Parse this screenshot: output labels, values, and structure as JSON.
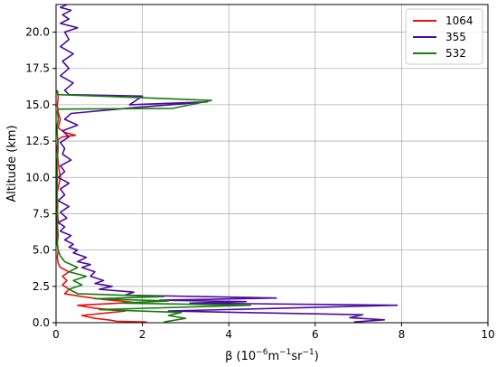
{
  "chart_data": {
    "type": "line",
    "orientation": "vertical-profile",
    "xlabel_parts": {
      "base": "β (10",
      "exp1": "−6",
      "mid": "m",
      "exp2": "−1",
      "mid2": "sr",
      "exp3": "−1",
      "end": ")"
    },
    "ylabel": "Altitude (km)",
    "xlim": [
      0,
      10
    ],
    "ylim": [
      0,
      21.9
    ],
    "x_ticks": [
      0,
      2,
      4,
      6,
      8,
      10
    ],
    "y_ticks": [
      0.0,
      2.5,
      5.0,
      7.5,
      10.0,
      12.5,
      15.0,
      17.5,
      20.0
    ],
    "x_tick_labels": [
      "0",
      "2",
      "4",
      "6",
      "8",
      "10"
    ],
    "y_tick_labels": [
      "0.0",
      "2.5",
      "5.0",
      "7.5",
      "10.0",
      "12.5",
      "15.0",
      "17.5",
      "20.0"
    ],
    "grid": true,
    "legend_position": "top-right",
    "series": [
      {
        "name": "1064",
        "color": "#e8130f",
        "x": [
          2.1,
          1.4,
          1.2,
          0.9,
          0.6,
          1.6,
          0.9,
          0.5,
          1.8,
          1.1,
          0.6,
          0.2,
          0.3,
          0.15,
          0.25,
          0.15,
          0.3,
          0.1,
          0.05,
          0.03,
          0.05,
          0.02,
          0.03,
          0.02,
          0.05,
          0.02,
          0.03,
          0.1,
          0.05,
          0.02,
          0.05,
          0.15,
          0.45,
          0.2,
          0.05,
          0.1,
          0.05,
          0.03,
          0.05,
          0.02
        ],
        "y": [
          0.05,
          0.1,
          0.2,
          0.3,
          0.5,
          0.8,
          1.0,
          1.2,
          1.4,
          1.6,
          1.8,
          2.0,
          2.3,
          2.6,
          2.9,
          3.2,
          3.5,
          3.8,
          4.1,
          4.5,
          5.0,
          5.5,
          6.0,
          6.5,
          7.0,
          8.0,
          9.0,
          10.0,
          11.0,
          12.0,
          12.6,
          12.8,
          12.9,
          13.1,
          13.4,
          14.0,
          14.5,
          15.0,
          15.5,
          16.0
        ]
      },
      {
        "name": "355",
        "color": "#4b0c9c",
        "x": [
          6.9,
          7.6,
          6.8,
          7.1,
          2.6,
          7.9,
          3.1,
          4.4,
          2.4,
          5.1,
          1.6,
          1.8,
          1.0,
          1.3,
          0.9,
          1.1,
          0.8,
          0.9,
          0.6,
          0.8,
          0.5,
          0.7,
          0.4,
          0.5,
          0.3,
          0.4,
          0.2,
          0.35,
          0.1,
          0.2,
          0.05,
          0.25,
          0.1,
          0.3,
          0.05,
          0.2,
          0.1,
          0.3,
          0.05,
          0.2,
          0.1,
          0.35,
          0.15,
          0.2,
          0.1,
          0.3,
          0.15,
          0.5,
          0.2,
          0.35,
          1.8,
          3.5,
          1.7,
          2.0,
          0.3,
          0.2,
          0.4,
          0.1,
          0.3,
          0.15,
          0.4,
          0.1,
          0.3,
          0.2,
          0.5,
          0.1,
          0.3,
          0.15,
          0.35,
          0.1,
          0.25
        ],
        "y": [
          0.05,
          0.2,
          0.35,
          0.55,
          0.8,
          1.2,
          1.35,
          1.45,
          1.55,
          1.7,
          1.9,
          2.1,
          2.3,
          2.5,
          2.7,
          2.9,
          3.2,
          3.5,
          3.8,
          4.0,
          4.2,
          4.5,
          4.8,
          5.0,
          5.2,
          5.4,
          5.7,
          6.0,
          6.3,
          6.6,
          6.9,
          7.2,
          7.6,
          8.0,
          8.4,
          8.8,
          9.2,
          9.6,
          10.0,
          10.4,
          10.8,
          11.2,
          11.6,
          12.0,
          12.4,
          12.8,
          13.2,
          13.6,
          14.0,
          14.4,
          14.8,
          15.2,
          15.0,
          15.6,
          15.7,
          16.0,
          16.5,
          17.0,
          17.5,
          18.0,
          18.5,
          19.0,
          19.5,
          20.0,
          20.3,
          20.6,
          20.9,
          21.2,
          21.5,
          21.7,
          21.9
        ]
      },
      {
        "name": "532",
        "color": "#1a7a10",
        "x": [
          2.5,
          3.0,
          2.6,
          2.9,
          1.0,
          4.5,
          1.5,
          2.6,
          0.9,
          2.5,
          0.5,
          0.3,
          0.6,
          0.4,
          0.7,
          0.3,
          0.5,
          0.2,
          0.1,
          0.05,
          0.03,
          0.05,
          0.02,
          0.04,
          0.02,
          0.03,
          0.02,
          0.05,
          0.03,
          0.02,
          0.05,
          0.03,
          0.05,
          2.7,
          3.6,
          1.0,
          0.05,
          0.03
        ],
        "y": [
          0.05,
          0.3,
          0.5,
          0.7,
          0.9,
          1.2,
          1.35,
          1.5,
          1.65,
          1.8,
          2.0,
          2.3,
          2.6,
          2.9,
          3.2,
          3.5,
          3.8,
          4.2,
          4.6,
          5.0,
          5.5,
          6.0,
          7.0,
          8.0,
          9.0,
          10.0,
          11.0,
          12.0,
          13.0,
          13.5,
          14.0,
          14.5,
          14.7,
          14.75,
          15.3,
          15.6,
          15.7,
          16.0
        ]
      }
    ]
  }
}
